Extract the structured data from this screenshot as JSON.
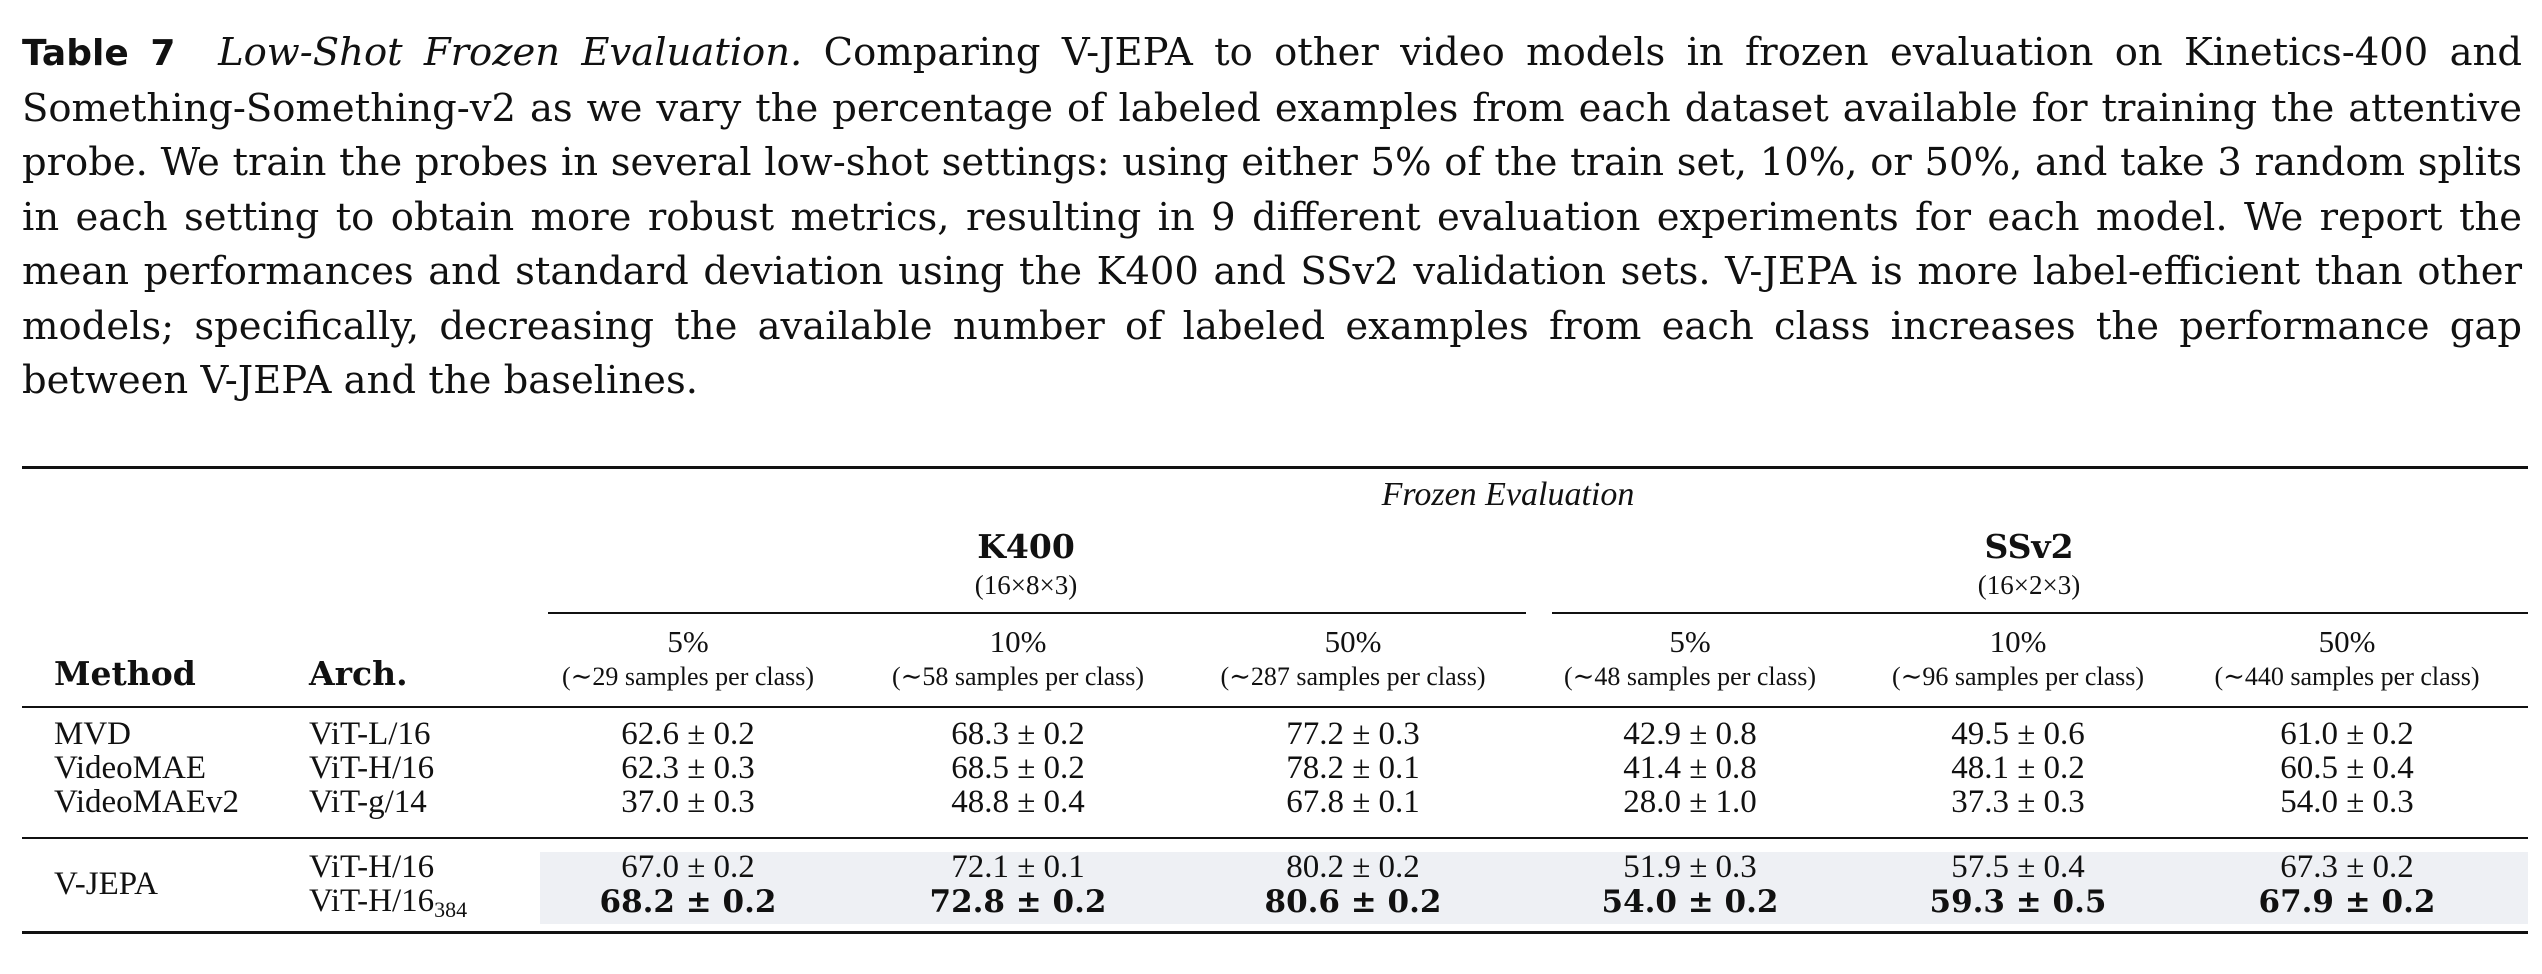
{
  "caption": {
    "label": "Table 7",
    "title": "Low-Shot Frozen Evaluation.",
    "text": "Comparing V-JEPA to other video models in frozen evaluation on Kinetics-400 and Something-Something-v2 as we vary the percentage of labeled examples from each dataset available for training the attentive probe. We train the probes in several low-shot settings: using either 5% of the train set, 10%, or 50%, and take 3 random splits in each setting to obtain more robust metrics, resulting in 9 different evaluation experiments for each model. We report the mean performances and standard deviation using the K400 and SSv2 validation sets. V-JEPA is more label-efficient than other models; specifically, decreasing the available number of labeled examples from each class increases the performance gap between V-JEPA and the baselines."
  },
  "table": {
    "group_header": "Frozen Evaluation",
    "method_header": "Method",
    "arch_header": "Arch.",
    "datasets": [
      {
        "name": "K400",
        "config": "(16×8×3)",
        "columns": [
          {
            "pct": "5%",
            "samples": "(∼29 samples per class)"
          },
          {
            "pct": "10%",
            "samples": "(∼58 samples per class)"
          },
          {
            "pct": "50%",
            "samples": "(∼287 samples per class)"
          }
        ]
      },
      {
        "name": "SSv2",
        "config": "(16×2×3)",
        "columns": [
          {
            "pct": "5%",
            "samples": "(∼48 samples per class)"
          },
          {
            "pct": "10%",
            "samples": "(∼96 samples per class)"
          },
          {
            "pct": "50%",
            "samples": "(∼440 samples per class)"
          }
        ]
      }
    ],
    "baselines": [
      {
        "method": "MVD",
        "arch": "ViT-L/16",
        "values": [
          "62.6 ± 0.2",
          "68.3 ± 0.2",
          "77.2 ± 0.3",
          "42.9 ± 0.8",
          "49.5 ± 0.6",
          "61.0 ± 0.2"
        ]
      },
      {
        "method": "VideoMAE",
        "arch": "ViT-H/16",
        "values": [
          "62.3 ± 0.3",
          "68.5 ± 0.2",
          "78.2 ± 0.1",
          "41.4 ± 0.8",
          "48.1 ± 0.2",
          "60.5 ± 0.4"
        ]
      },
      {
        "method": "VideoMAEv2",
        "arch": "ViT-g/14",
        "values": [
          "37.0 ± 0.3",
          "48.8 ± 0.4",
          "67.8 ± 0.1",
          "28.0 ± 1.0",
          "37.3 ± 0.3",
          "54.0 ± 0.3"
        ]
      }
    ],
    "ours": {
      "method": "V-JEPA",
      "rows": [
        {
          "arch": "ViT-H/16",
          "arch_sub": "",
          "values": [
            "67.0 ± 0.2",
            "72.1 ± 0.1",
            "80.2 ± 0.2",
            "51.9 ± 0.3",
            "57.5 ± 0.4",
            "67.3 ± 0.2"
          ]
        },
        {
          "arch": "ViT-H/16",
          "arch_sub": "384",
          "values": [
            "68.2 ± 0.2",
            "72.8 ± 0.2",
            "80.6 ± 0.2",
            "54.0 ± 0.2",
            "59.3 ± 0.5",
            "67.9 ± 0.2"
          ]
        }
      ]
    }
  }
}
